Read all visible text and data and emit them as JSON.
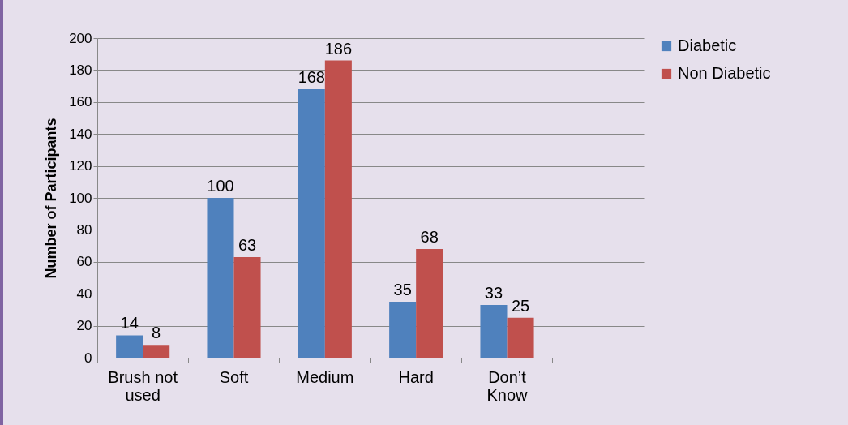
{
  "chart_data": {
    "type": "bar",
    "ylabel": "Number of Participants",
    "categories": [
      "Brush not used",
      "Soft",
      "Medium",
      "Hard",
      "Don’t Know",
      null
    ],
    "series": [
      {
        "name": "Diabetic",
        "color": "#4f81bd",
        "values": [
          14,
          100,
          168,
          35,
          33,
          null
        ]
      },
      {
        "name": "Non Diabetic",
        "color": "#c0504d",
        "values": [
          8,
          63,
          186,
          68,
          25,
          null
        ]
      }
    ],
    "ylim": [
      0,
      200
    ],
    "yticks": [
      0,
      20,
      40,
      60,
      80,
      100,
      120,
      140,
      160,
      180,
      200
    ],
    "grid": "y",
    "legend": "right",
    "data_labels": true
  }
}
